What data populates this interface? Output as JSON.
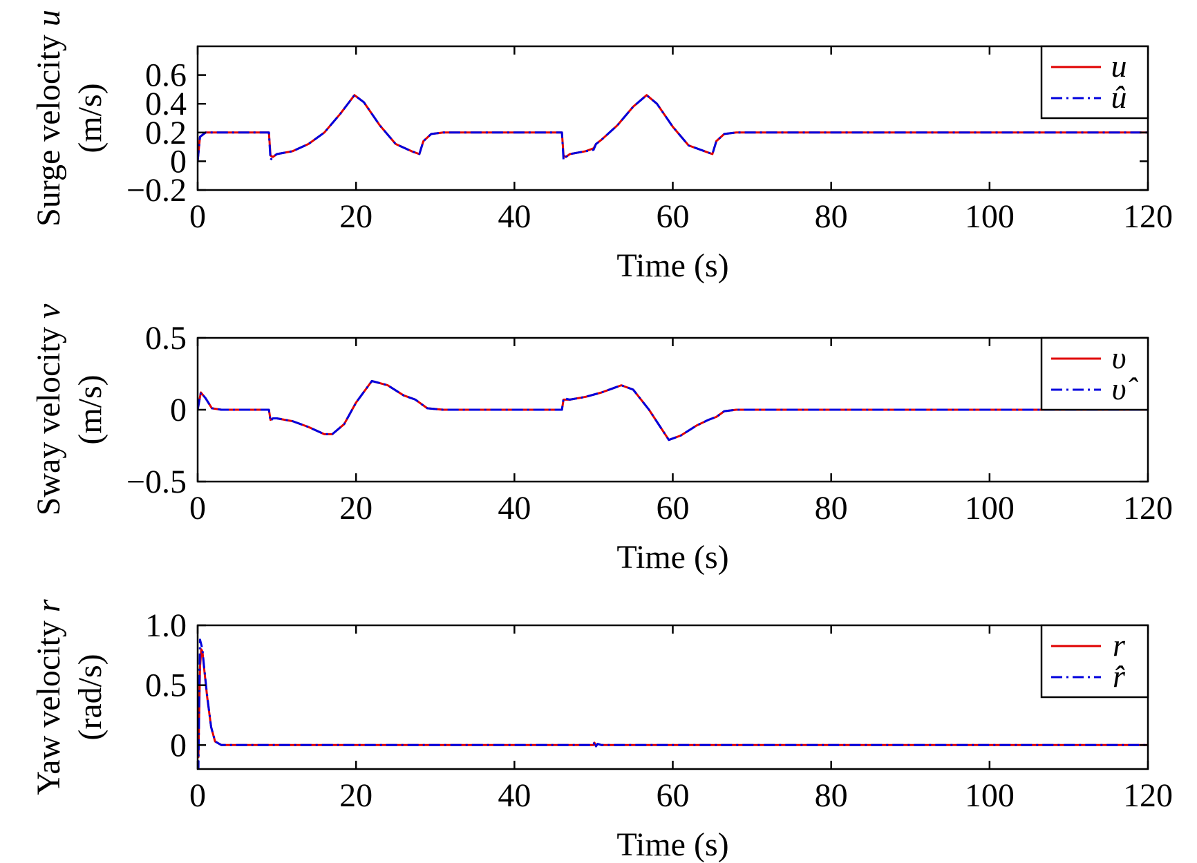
{
  "chart_data": [
    {
      "type": "line",
      "xlabel": "Time (s)",
      "ylabel": {
        "line1_text": "Surge velocity ",
        "line1_symbol": "u",
        "line2": "(m/s)"
      },
      "xlim": [
        0,
        120
      ],
      "ylim": [
        -0.2,
        0.8
      ],
      "xticks": [
        "0",
        "20",
        "40",
        "60",
        "80",
        "100",
        "120"
      ],
      "xtick_values": [
        0,
        20,
        40,
        60,
        80,
        100,
        120
      ],
      "yticks": [
        "−0.2",
        "0",
        "0.2",
        "0.4",
        "0.6"
      ],
      "ytick_values": [
        -0.2,
        0,
        0.2,
        0.4,
        0.6
      ],
      "legend_position": "top-right",
      "series": [
        {
          "name": "u",
          "color": "#e00000",
          "style": "solid",
          "x": [
            0,
            0.3,
            1,
            2,
            9,
            9.2,
            9.5,
            10,
            12,
            14,
            16,
            18,
            19.8,
            21,
            23,
            25,
            27,
            28,
            28.5,
            29.5,
            31,
            46,
            46.2,
            46.5,
            47,
            49,
            50,
            50.3,
            51,
            53,
            55,
            56.7,
            58,
            60,
            62,
            64,
            65,
            65.5,
            66.5,
            68,
            80,
            100,
            120
          ],
          "values": [
            0,
            0.17,
            0.2,
            0.2,
            0.2,
            0.04,
            0.03,
            0.05,
            0.07,
            0.12,
            0.2,
            0.33,
            0.46,
            0.41,
            0.25,
            0.12,
            0.07,
            0.05,
            0.14,
            0.19,
            0.2,
            0.2,
            0.04,
            0.03,
            0.05,
            0.07,
            0.09,
            0.12,
            0.15,
            0.25,
            0.38,
            0.46,
            0.4,
            0.24,
            0.11,
            0.07,
            0.05,
            0.14,
            0.19,
            0.2,
            0.2,
            0.2,
            0.2
          ]
        },
        {
          "name": "û",
          "color": "#0000dd",
          "style": "dashdot",
          "x": [
            0,
            0.3,
            1,
            2,
            9,
            9.2,
            9.5,
            10,
            12,
            14,
            16,
            18,
            19.8,
            21,
            23,
            25,
            27,
            28,
            28.5,
            29.5,
            31,
            46,
            46.2,
            46.5,
            47,
            49,
            50,
            50.3,
            51,
            53,
            55,
            56.7,
            58,
            60,
            62,
            64,
            65,
            65.5,
            66.5,
            68,
            80,
            100,
            120
          ],
          "values": [
            0,
            0.17,
            0.2,
            0.2,
            0.2,
            0.01,
            0.03,
            0.05,
            0.07,
            0.12,
            0.2,
            0.33,
            0.46,
            0.41,
            0.25,
            0.12,
            0.07,
            0.05,
            0.14,
            0.19,
            0.2,
            0.2,
            0.01,
            0.03,
            0.05,
            0.07,
            0.08,
            0.12,
            0.15,
            0.25,
            0.38,
            0.46,
            0.4,
            0.24,
            0.11,
            0.07,
            0.05,
            0.14,
            0.19,
            0.2,
            0.2,
            0.2,
            0.2
          ]
        }
      ]
    },
    {
      "type": "line",
      "xlabel": "Time (s)",
      "ylabel": {
        "line1_text": "Sway velocity ",
        "line1_symbol": "v",
        "line2": "(m/s)"
      },
      "xlim": [
        0,
        120
      ],
      "ylim": [
        -0.5,
        0.5
      ],
      "xticks": [
        "0",
        "20",
        "40",
        "60",
        "80",
        "100",
        "120"
      ],
      "xtick_values": [
        0,
        20,
        40,
        60,
        80,
        100,
        120
      ],
      "yticks": [
        "−0.5",
        "0",
        "0.5"
      ],
      "ytick_values": [
        -0.5,
        0,
        0.5
      ],
      "legend_position": "top-right",
      "series": [
        {
          "name": "υ",
          "color": "#e00000",
          "style": "solid",
          "x": [
            0,
            0.4,
            1,
            1.8,
            3,
            9,
            9.2,
            9.5,
            10,
            12,
            14,
            16,
            17,
            18.5,
            20,
            22,
            24,
            26,
            27.5,
            28,
            29,
            31,
            46,
            46.2,
            47,
            49,
            51,
            53.5,
            55,
            57,
            59.5,
            61,
            63,
            64.5,
            65.5,
            66.5,
            68,
            80,
            100,
            120
          ],
          "values": [
            0,
            0.12,
            0.08,
            0.01,
            0,
            0,
            -0.07,
            -0.06,
            -0.06,
            -0.08,
            -0.12,
            -0.17,
            -0.17,
            -0.1,
            0.05,
            0.2,
            0.17,
            0.1,
            0.07,
            0.05,
            0.01,
            0,
            0,
            0.07,
            0.07,
            0.09,
            0.12,
            0.17,
            0.14,
            0,
            -0.21,
            -0.18,
            -0.11,
            -0.07,
            -0.05,
            -0.01,
            0,
            0,
            0,
            0
          ]
        },
        {
          "name": "υ̂",
          "color": "#0000dd",
          "style": "dashdot",
          "x": [
            0,
            0.4,
            1,
            1.8,
            3,
            9,
            9.2,
            9.5,
            10,
            12,
            14,
            16,
            17,
            18.5,
            20,
            22,
            24,
            26,
            27.5,
            28,
            29,
            31,
            46,
            46.2,
            47,
            49,
            51,
            53.5,
            55,
            57,
            59.5,
            61,
            63,
            64.5,
            65.5,
            66.5,
            68,
            80,
            100,
            120
          ],
          "values": [
            0,
            0.12,
            0.08,
            0.01,
            0,
            0,
            -0.08,
            -0.06,
            -0.06,
            -0.08,
            -0.12,
            -0.17,
            -0.17,
            -0.1,
            0.05,
            0.2,
            0.17,
            0.1,
            0.07,
            0.05,
            0.01,
            0,
            0,
            0.08,
            0.07,
            0.09,
            0.12,
            0.17,
            0.14,
            0,
            -0.21,
            -0.18,
            -0.11,
            -0.07,
            -0.05,
            -0.01,
            0,
            0,
            0,
            0
          ]
        }
      ]
    },
    {
      "type": "line",
      "xlabel": "Time (s)",
      "ylabel": {
        "line1_text": "Yaw velocity ",
        "line1_symbol": "r",
        "line2": "(rad/s)"
      },
      "xlim": [
        0,
        120
      ],
      "ylim": [
        -0.2,
        1.0
      ],
      "xticks": [
        "0",
        "20",
        "40",
        "60",
        "80",
        "100",
        "120"
      ],
      "xtick_values": [
        0,
        20,
        40,
        60,
        80,
        100,
        120
      ],
      "yticks": [
        "0",
        "0.5",
        "1.0"
      ],
      "ytick_values": [
        0,
        0.5,
        1.0
      ],
      "legend_position": "top-right",
      "series": [
        {
          "name": "r",
          "color": "#e00000",
          "style": "solid",
          "x": [
            0,
            0.1,
            0.2,
            0.3,
            0.45,
            0.6,
            0.8,
            1.2,
            1.7,
            2.2,
            3,
            4,
            50,
            50.1,
            50.3,
            50.5,
            51,
            120
          ],
          "values": [
            0,
            -0.1,
            0.3,
            0.65,
            0.8,
            0.78,
            0.65,
            0.4,
            0.15,
            0.03,
            0,
            0,
            0,
            0.02,
            -0.01,
            0.01,
            0,
            0
          ]
        },
        {
          "name": "r̂",
          "color": "#0000dd",
          "style": "dashdot",
          "x": [
            0,
            0.1,
            0.2,
            0.3,
            0.45,
            0.6,
            0.8,
            1.2,
            1.7,
            2.2,
            3,
            4,
            50,
            50.1,
            50.3,
            50.5,
            51,
            120
          ],
          "values": [
            0,
            -0.2,
            0.4,
            0.88,
            0.84,
            0.8,
            0.66,
            0.41,
            0.15,
            0.03,
            0,
            0,
            0,
            0.03,
            -0.01,
            0.01,
            0,
            0
          ]
        }
      ]
    }
  ]
}
